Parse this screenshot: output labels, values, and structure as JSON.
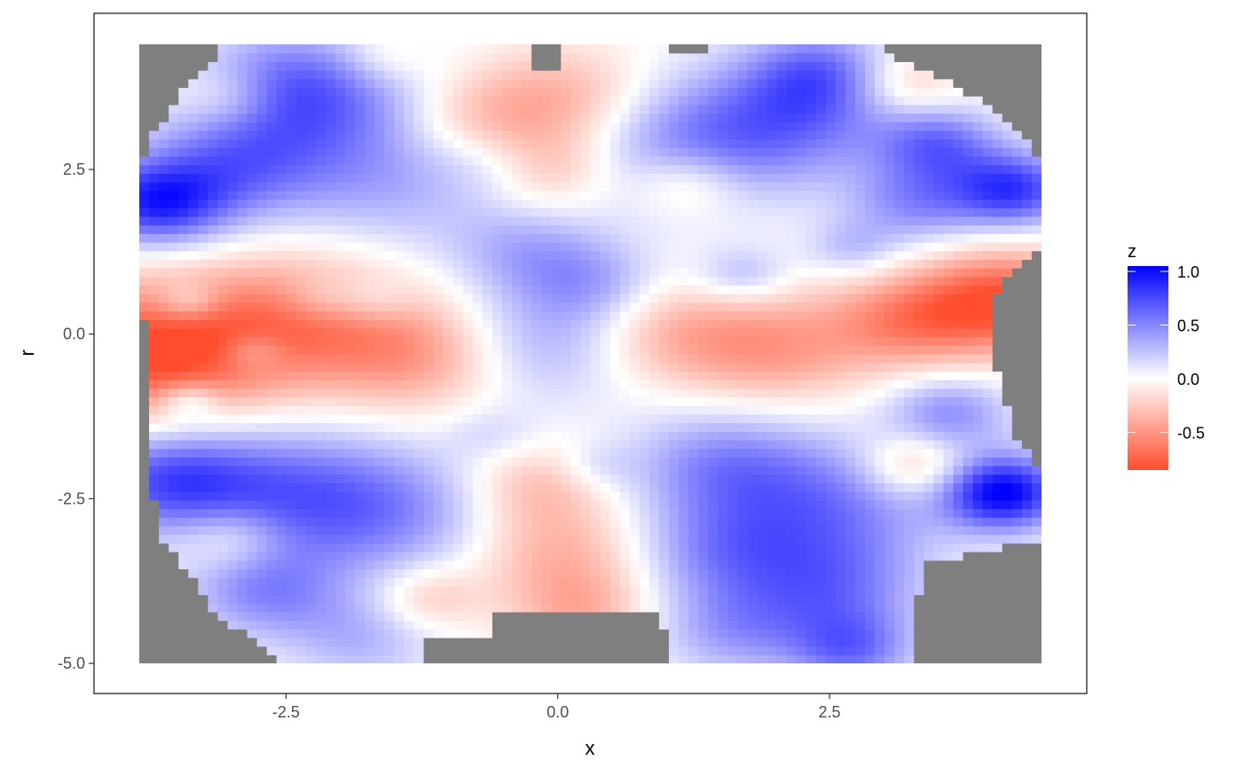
{
  "chart_data": {
    "type": "heatmap",
    "title": "",
    "xlabel": "x",
    "ylabel": "r",
    "xlim": [
      -3.85,
      4.45
    ],
    "ylim": [
      -5.0,
      4.4
    ],
    "x_ticks": [
      -2.5,
      0.0,
      2.5
    ],
    "x_tick_labels": [
      "-2.5",
      "0.0",
      "2.5"
    ],
    "y_ticks": [
      -5.0,
      -2.5,
      0.0,
      2.5
    ],
    "y_tick_labels": [
      "-5.0",
      "-2.5",
      "0.0",
      "2.5"
    ],
    "grid": false,
    "na_color": "#7f7f7f",
    "legend": {
      "title": "z",
      "position": "right",
      "ticks": [
        1.0,
        0.5,
        0.0,
        -0.5
      ],
      "tick_labels": [
        "1.0",
        "0.5",
        "0.0",
        "-0.5"
      ],
      "range": [
        -0.85,
        1.05
      ],
      "low_color": "#ff4d2e",
      "mid_color": "#ffffff",
      "high_color": "#0000ff",
      "midpoint": 0.0
    },
    "grid_nx": 92,
    "grid_ny": 72,
    "surface_blobs": [
      {
        "x": -3.7,
        "r": 2.0,
        "z": 0.85,
        "s": 0.45
      },
      {
        "x": -2.95,
        "r": 2.6,
        "z": 0.55,
        "s": 0.6
      },
      {
        "x": -2.6,
        "r": 3.8,
        "z": 0.45,
        "s": 0.55
      },
      {
        "x": -1.9,
        "r": 3.5,
        "z": 0.4,
        "s": 0.7
      },
      {
        "x": -1.5,
        "r": 2.3,
        "z": 0.3,
        "s": 0.7
      },
      {
        "x": -3.6,
        "r": -2.2,
        "z": 0.65,
        "s": 0.55
      },
      {
        "x": -2.6,
        "r": -2.4,
        "z": 0.5,
        "s": 0.7
      },
      {
        "x": -1.6,
        "r": -2.7,
        "z": 0.45,
        "s": 0.7
      },
      {
        "x": -2.7,
        "r": -3.9,
        "z": 0.45,
        "s": 0.5
      },
      {
        "x": -1.8,
        "r": -4.6,
        "z": 0.3,
        "s": 0.5
      },
      {
        "x": -3.4,
        "r": 0.5,
        "z": 0.3,
        "s": 0.2
      },
      {
        "x": -3.4,
        "r": -1.0,
        "z": 0.35,
        "s": 0.2
      },
      {
        "x": -2.8,
        "r": -0.25,
        "z": 0.25,
        "s": 0.2
      },
      {
        "x": -2.2,
        "r": 0.55,
        "z": 0.2,
        "s": 0.25
      },
      {
        "x": -1.7,
        "r": 0.5,
        "z": 0.2,
        "s": 0.25
      },
      {
        "x": -0.1,
        "r": -0.1,
        "z": 0.35,
        "s": 0.65
      },
      {
        "x": -0.3,
        "r": 1.3,
        "z": 0.3,
        "s": 0.5
      },
      {
        "x": 0.3,
        "r": 0.8,
        "z": 0.3,
        "s": 0.45
      },
      {
        "x": -0.6,
        "r": 2.6,
        "z": 0.15,
        "s": 0.35
      },
      {
        "x": -0.6,
        "r": -1.5,
        "z": 0.15,
        "s": 0.3
      },
      {
        "x": 1.2,
        "r": 2.9,
        "z": 0.45,
        "s": 0.7
      },
      {
        "x": 2.2,
        "r": 3.3,
        "z": 0.5,
        "s": 0.65
      },
      {
        "x": 2.4,
        "r": 4.0,
        "z": 0.45,
        "s": 0.45
      },
      {
        "x": 3.5,
        "r": 2.9,
        "z": 0.55,
        "s": 0.4
      },
      {
        "x": 4.2,
        "r": 2.2,
        "z": 0.8,
        "s": 0.4
      },
      {
        "x": 3.3,
        "r": 2.0,
        "z": 0.45,
        "s": 0.45
      },
      {
        "x": 1.7,
        "r": 0.9,
        "z": 0.3,
        "s": 0.3
      },
      {
        "x": 2.7,
        "r": 1.3,
        "z": 0.25,
        "s": 0.3
      },
      {
        "x": 1.5,
        "r": -2.0,
        "z": 0.45,
        "s": 0.6
      },
      {
        "x": 2.5,
        "r": -2.6,
        "z": 0.5,
        "s": 0.7
      },
      {
        "x": 2.5,
        "r": -3.9,
        "z": 0.5,
        "s": 0.6
      },
      {
        "x": 1.5,
        "r": -3.3,
        "z": 0.4,
        "s": 0.55
      },
      {
        "x": 1.6,
        "r": -4.5,
        "z": 0.35,
        "s": 0.5
      },
      {
        "x": 2.7,
        "r": -4.8,
        "z": 0.5,
        "s": 0.4
      },
      {
        "x": 3.6,
        "r": -1.2,
        "z": 0.45,
        "s": 0.4
      },
      {
        "x": 4.1,
        "r": -2.4,
        "z": 1.05,
        "s": 0.4
      },
      {
        "x": 0.35,
        "r": -2.0,
        "z": 0.15,
        "s": 0.25
      },
      {
        "x": -3.75,
        "r": -0.3,
        "z": -0.85,
        "s": 0.75
      },
      {
        "x": -2.4,
        "r": 0.2,
        "z": -0.55,
        "s": 0.7
      },
      {
        "x": -1.3,
        "r": -0.3,
        "z": -0.45,
        "s": 0.6
      },
      {
        "x": -0.8,
        "r": 3.3,
        "z": -0.35,
        "s": 0.55
      },
      {
        "x": 0.1,
        "r": 3.6,
        "z": -0.35,
        "s": 0.55
      },
      {
        "x": -0.1,
        "r": 2.5,
        "z": -0.3,
        "s": 0.45
      },
      {
        "x": 1.0,
        "r": 0.0,
        "z": -0.35,
        "s": 0.55
      },
      {
        "x": 2.0,
        "r": -0.2,
        "z": -0.45,
        "s": 0.6
      },
      {
        "x": 3.2,
        "r": 0.2,
        "z": -0.5,
        "s": 0.5
      },
      {
        "x": 4.1,
        "r": 0.5,
        "z": -0.8,
        "s": 0.55
      },
      {
        "x": 0.0,
        "r": -3.3,
        "z": -0.35,
        "s": 0.55
      },
      {
        "x": -0.2,
        "r": -2.3,
        "z": -0.3,
        "s": 0.45
      },
      {
        "x": 0.2,
        "r": -4.2,
        "z": -0.35,
        "s": 0.45
      },
      {
        "x": -3.0,
        "r": 3.6,
        "z": -0.3,
        "s": 0.35
      },
      {
        "x": 3.2,
        "r": 3.8,
        "z": -0.3,
        "s": 0.35
      },
      {
        "x": -3.0,
        "r": -3.1,
        "z": -0.3,
        "s": 0.35
      },
      {
        "x": 3.3,
        "r": -2.0,
        "z": -0.4,
        "s": 0.35
      },
      {
        "x": -1.2,
        "r": -4.0,
        "z": -0.3,
        "s": 0.35
      },
      {
        "x": 1.2,
        "r": 2.3,
        "z": -0.3,
        "s": 0.35
      },
      {
        "x": -1.6,
        "r": 4.2,
        "z": -0.2,
        "s": 0.3
      }
    ],
    "na_region_left_edge": [
      [
        4.4,
        -3.85,
        -3.05
      ],
      [
        3.6,
        -3.85,
        -3.5
      ],
      [
        3.1,
        -3.85,
        -3.7
      ],
      [
        2.6,
        -3.85,
        -3.85
      ],
      [
        1.7,
        -3.85,
        -3.85
      ],
      [
        -3.0,
        -3.85,
        -3.7
      ],
      [
        -3.6,
        -3.85,
        -3.4
      ],
      [
        -4.2,
        -3.85,
        -3.2
      ],
      [
        -5.0,
        -3.85,
        -2.5
      ]
    ],
    "na_region_right_edge": [
      [
        4.4,
        2.9,
        4.45
      ],
      [
        3.6,
        3.85,
        4.45
      ],
      [
        3.1,
        4.25,
        4.45
      ],
      [
        2.6,
        4.45,
        4.45
      ],
      [
        1.3,
        4.45,
        4.45
      ],
      [
        0.9,
        4.1,
        4.45
      ],
      [
        0.0,
        3.95,
        4.45
      ],
      [
        -1.7,
        4.25,
        4.45
      ],
      [
        -2.0,
        4.45,
        4.45
      ],
      [
        -3.1,
        4.45,
        4.45
      ],
      [
        -3.5,
        3.35,
        4.45
      ],
      [
        -4.3,
        3.3,
        4.45
      ],
      [
        -5.0,
        3.25,
        4.45
      ]
    ],
    "na_region_top_notches": [
      {
        "x0": -0.25,
        "x1": 0.0,
        "r0": 4.05,
        "r1": 4.4
      },
      {
        "x0": 1.0,
        "x1": 1.4,
        "r0": 4.3,
        "r1": 4.4
      }
    ],
    "na_region_bottom_notches": [
      {
        "x0": -1.2,
        "x1": -0.6,
        "r0": -5.0,
        "r1": -4.6
      },
      {
        "x0": -0.6,
        "x1": 0.9,
        "r0": -5.0,
        "r1": -4.2
      },
      {
        "x0": 0.9,
        "x1": 1.0,
        "r0": -5.0,
        "r1": -4.5
      }
    ]
  }
}
